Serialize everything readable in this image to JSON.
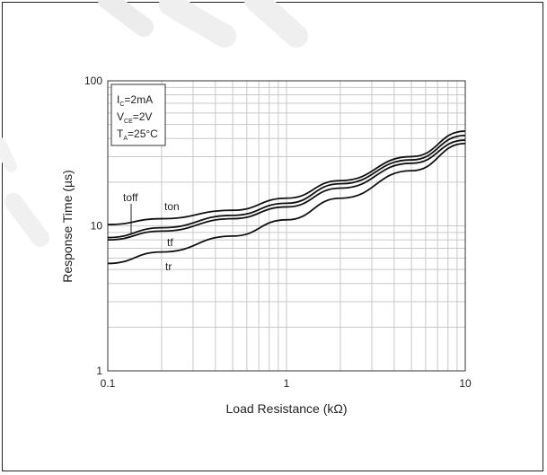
{
  "chart_data": {
    "type": "line",
    "x_scale": "log",
    "y_scale": "log",
    "xlabel": "Load Resistance (kΩ)",
    "ylabel": "Response Time (µs)",
    "xlim": [
      0.1,
      10
    ],
    "ylim": [
      1,
      100
    ],
    "x_ticks": [
      "0.1",
      "1",
      "10"
    ],
    "y_ticks": [
      "1",
      "10",
      "100"
    ],
    "grid": true,
    "conditions": {
      "ic": {
        "main": "I",
        "sub": "C",
        "rest": "=2mA"
      },
      "vce": {
        "main": "V",
        "sub": "CE",
        "rest": "=2V"
      },
      "ta": {
        "main": "T",
        "sub": "A",
        "rest": "=25°C"
      }
    },
    "series": [
      {
        "name": "ton",
        "x": [
          0.1,
          0.2,
          0.5,
          1,
          2,
          5,
          10
        ],
        "y": [
          10.2,
          11.2,
          12.8,
          15.5,
          20.5,
          30,
          45
        ]
      },
      {
        "name": "toff",
        "x": [
          0.1,
          0.2,
          0.5,
          1,
          2,
          5,
          10
        ],
        "y": [
          8.3,
          9.7,
          11.8,
          14.3,
          19.5,
          28.5,
          42
        ]
      },
      {
        "name": "tf",
        "x": [
          0.1,
          0.2,
          0.5,
          1,
          2,
          5,
          10
        ],
        "y": [
          8.0,
          9.2,
          11.2,
          13.5,
          18.2,
          27,
          39
        ]
      },
      {
        "name": "tr",
        "x": [
          0.1,
          0.2,
          0.5,
          1,
          2,
          5,
          10
        ],
        "y": [
          5.5,
          6.6,
          8.5,
          11.0,
          15.5,
          24,
          37
        ]
      }
    ],
    "colors": {
      "line": "#111111",
      "grid": "#c8c8c8",
      "frame": "#333333"
    }
  }
}
